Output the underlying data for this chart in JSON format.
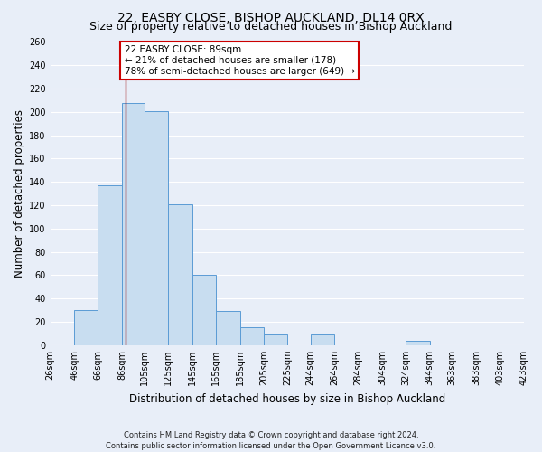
{
  "title": "22, EASBY CLOSE, BISHOP AUCKLAND, DL14 0RX",
  "subtitle": "Size of property relative to detached houses in Bishop Auckland",
  "xlabel": "Distribution of detached houses by size in Bishop Auckland",
  "ylabel": "Number of detached properties",
  "footnote1": "Contains HM Land Registry data © Crown copyright and database right 2024.",
  "footnote2": "Contains public sector information licensed under the Open Government Licence v3.0.",
  "bin_edges": [
    26,
    46,
    66,
    86,
    105,
    125,
    145,
    165,
    185,
    205,
    225,
    244,
    264,
    284,
    304,
    324,
    344,
    363,
    383,
    403,
    423
  ],
  "bin_labels": [
    "26sqm",
    "46sqm",
    "66sqm",
    "86sqm",
    "105sqm",
    "125sqm",
    "145sqm",
    "165sqm",
    "185sqm",
    "205sqm",
    "225sqm",
    "244sqm",
    "264sqm",
    "284sqm",
    "304sqm",
    "324sqm",
    "344sqm",
    "363sqm",
    "383sqm",
    "403sqm",
    "423sqm"
  ],
  "counts": [
    0,
    30,
    137,
    208,
    201,
    121,
    60,
    29,
    15,
    9,
    0,
    9,
    0,
    0,
    0,
    4,
    0,
    0,
    0,
    0
  ],
  "bar_color": "#c8ddf0",
  "bar_edge_color": "#5b9bd5",
  "property_size": 89,
  "vline_color": "#990000",
  "annotation_title": "22 EASBY CLOSE: 89sqm",
  "annotation_line1": "← 21% of detached houses are smaller (178)",
  "annotation_line2": "78% of semi-detached houses are larger (649) →",
  "annotation_box_color": "#ffffff",
  "annotation_box_edge": "#cc0000",
  "ylim": [
    0,
    260
  ],
  "yticks": [
    0,
    20,
    40,
    60,
    80,
    100,
    120,
    140,
    160,
    180,
    200,
    220,
    240,
    260
  ],
  "background_color": "#e8eef8",
  "grid_color": "#ffffff",
  "title_fontsize": 10,
  "subtitle_fontsize": 9,
  "axis_label_fontsize": 8.5,
  "tick_fontsize": 7,
  "annotation_fontsize": 7.5,
  "footnote_fontsize": 6
}
